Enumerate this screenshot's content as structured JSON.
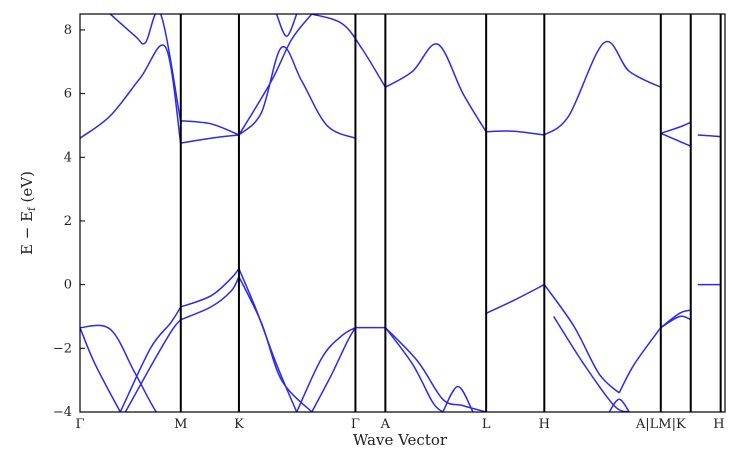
{
  "chart_data": {
    "type": "line",
    "xlabel": "Wave Vector",
    "ylabel_parts": {
      "main": "E − E",
      "sub": "f",
      "unit": " (eV)"
    },
    "ylim": [
      -4,
      8.5
    ],
    "yticks": [
      -4,
      -2,
      0,
      2,
      4,
      6,
      8
    ],
    "ytick_labels": [
      "−4",
      "−2",
      "0",
      "2",
      "4",
      "6",
      "8"
    ],
    "grid": false,
    "line_color": "#2a2af0",
    "kpoints": [
      {
        "label": "Γ",
        "pos": 0
      },
      {
        "label": "M",
        "pos": 1
      },
      {
        "label": "K",
        "pos": 1.577
      },
      {
        "label": "Γ",
        "pos": 2.733
      },
      {
        "label": "A",
        "pos": 3.03
      },
      {
        "label": "L",
        "pos": 4.03
      },
      {
        "label": "H",
        "pos": 4.607
      },
      {
        "label": "A|LM|K",
        "pos": 5.763
      },
      {
        "label": "H",
        "pos": 6.34
      }
    ],
    "inner_boundaries": [
      6.06,
      6.357
    ],
    "xlim": [
      0,
      6.4
    ],
    "series": [
      {
        "x": [
          0,
          0.3,
          0.6,
          0.85,
          1.0
        ],
        "y": [
          4.6,
          5.3,
          6.5,
          7.45,
          4.4
        ]
      },
      {
        "x": [
          0.3,
          0.55,
          0.65,
          0.8,
          1.0
        ],
        "y": [
          8.5,
          7.8,
          7.6,
          8.5,
          5.1
        ]
      },
      {
        "x": [
          1.0,
          1.3,
          1.577
        ],
        "y": [
          4.45,
          4.6,
          4.7
        ]
      },
      {
        "x": [
          1.0,
          1.3,
          1.577
        ],
        "y": [
          5.15,
          5.05,
          4.7
        ]
      },
      {
        "x": [
          1.577,
          1.8,
          2.0,
          2.2,
          2.45,
          2.733
        ],
        "y": [
          4.7,
          5.4,
          7.45,
          6.4,
          5.0,
          4.6
        ]
      },
      {
        "x": [
          1.577,
          1.9,
          2.1,
          2.3
        ],
        "y": [
          4.7,
          6.4,
          7.7,
          8.5
        ]
      },
      {
        "x": [
          1.95,
          2.05,
          2.15
        ],
        "y": [
          8.5,
          7.8,
          8.5
        ]
      },
      {
        "x": [
          2.3,
          2.6,
          2.8,
          3.03
        ],
        "y": [
          8.5,
          8.2,
          7.4,
          6.2
        ]
      },
      {
        "x": [
          3.03,
          3.3,
          3.55,
          3.8,
          4.03
        ],
        "y": [
          6.2,
          6.7,
          7.55,
          6.0,
          4.8
        ]
      },
      {
        "x": [
          4.03,
          4.3,
          4.607
        ],
        "y": [
          4.8,
          4.82,
          4.7
        ]
      },
      {
        "x": [
          4.607,
          4.85,
          5.2,
          5.45,
          5.763
        ],
        "y": [
          4.7,
          5.3,
          7.6,
          6.7,
          6.2
        ]
      },
      {
        "x": [
          5.763,
          5.95,
          6.06
        ],
        "y": [
          4.75,
          4.95,
          5.1
        ]
      },
      {
        "x": [
          5.763,
          5.95,
          6.06
        ],
        "y": [
          4.75,
          4.5,
          4.35
        ]
      },
      {
        "x": [
          6.13,
          6.357
        ],
        "y": [
          4.7,
          4.65
        ]
      },
      {
        "x": [
          0,
          0.3,
          0.55,
          0.8,
          1.0
        ],
        "y": [
          -1.35,
          -1.4,
          -2.8,
          -4.2,
          -4.5
        ]
      },
      {
        "x": [
          0,
          0.15,
          0.4
        ],
        "y": [
          -1.35,
          -2.5,
          -4.0
        ]
      },
      {
        "x": [
          0.4,
          0.7,
          0.9,
          1.0
        ],
        "y": [
          -4.0,
          -2.0,
          -1.2,
          -0.7
        ]
      },
      {
        "x": [
          0.45,
          0.75,
          0.92,
          1.0
        ],
        "y": [
          -4.0,
          -2.3,
          -1.4,
          -1.1
        ]
      },
      {
        "x": [
          1.0,
          1.3,
          1.5,
          1.577
        ],
        "y": [
          -0.7,
          -0.35,
          0.2,
          0.5
        ]
      },
      {
        "x": [
          1.0,
          1.3,
          1.5,
          1.577
        ],
        "y": [
          -1.1,
          -0.7,
          -0.2,
          0.25
        ]
      },
      {
        "x": [
          1.577,
          1.75,
          1.95,
          2.15
        ],
        "y": [
          0.5,
          -0.8,
          -2.5,
          -4.0
        ]
      },
      {
        "x": [
          1.577,
          1.8,
          2.0,
          2.3
        ],
        "y": [
          0.25,
          -1.2,
          -3.0,
          -4.0
        ]
      },
      {
        "x": [
          2.15,
          2.4,
          2.6,
          2.733
        ],
        "y": [
          -4.0,
          -2.3,
          -1.6,
          -1.35
        ]
      },
      {
        "x": [
          2.3,
          2.5,
          2.65,
          2.733
        ],
        "y": [
          -4.0,
          -2.8,
          -1.8,
          -1.35
        ]
      },
      {
        "x": [
          2.733,
          2.9,
          3.03
        ],
        "y": [
          -1.35,
          -1.35,
          -1.35
        ]
      },
      {
        "x": [
          3.03,
          3.35,
          3.6,
          3.8,
          4.03
        ],
        "y": [
          -1.35,
          -2.4,
          -3.6,
          -3.8,
          -4.0
        ]
      },
      {
        "x": [
          3.03,
          3.3,
          3.5,
          3.6
        ],
        "y": [
          -1.35,
          -2.5,
          -3.7,
          -4.0
        ]
      },
      {
        "x": [
          3.6,
          3.75,
          3.9
        ],
        "y": [
          -4.0,
          -3.2,
          -4.0
        ]
      },
      {
        "x": [
          4.03,
          4.3,
          4.607
        ],
        "y": [
          -0.9,
          -0.5,
          0.0
        ]
      },
      {
        "x": [
          4.607,
          4.9,
          5.15,
          5.35
        ],
        "y": [
          0.0,
          -1.3,
          -2.8,
          -3.4
        ]
      },
      {
        "x": [
          5.35,
          5.5,
          5.763
        ],
        "y": [
          -3.4,
          -2.5,
          -1.35
        ]
      },
      {
        "x": [
          5.25,
          5.35,
          5.45
        ],
        "y": [
          -4.0,
          -3.6,
          -4.0
        ]
      },
      {
        "x": [
          4.7,
          5.0,
          5.3,
          5.45
        ],
        "y": [
          -1.0,
          -2.5,
          -3.8,
          -4.0
        ]
      },
      {
        "x": [
          5.763,
          5.95,
          6.06
        ],
        "y": [
          -1.35,
          -0.9,
          -0.8
        ]
      },
      {
        "x": [
          5.763,
          5.95,
          6.06
        ],
        "y": [
          -1.35,
          -1.0,
          -1.1
        ]
      },
      {
        "x": [
          6.13,
          6.357
        ],
        "y": [
          0.0,
          0.0
        ]
      }
    ]
  }
}
